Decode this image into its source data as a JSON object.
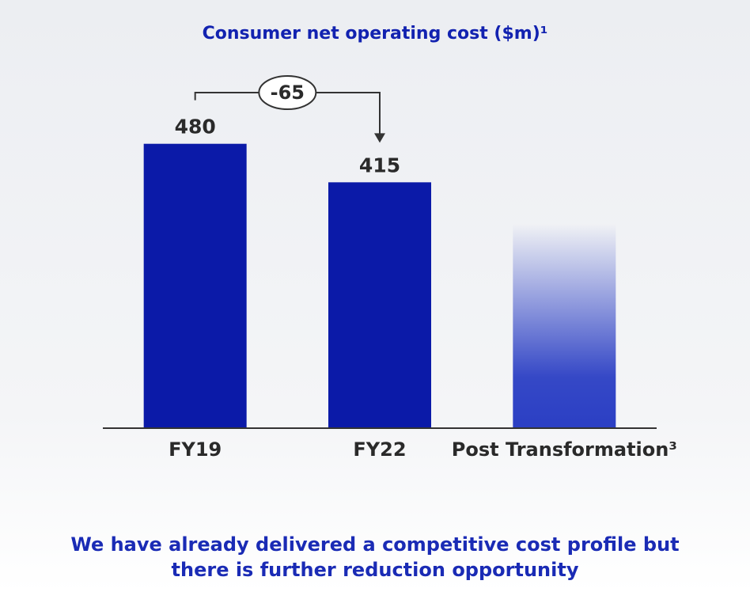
{
  "chart_data": {
    "type": "bar",
    "title": "Consumer net operating cost ($m)¹",
    "categories": [
      "FY19",
      "FY22",
      "Post Transformation³"
    ],
    "values": [
      480,
      415,
      345
    ],
    "value_labels": [
      "480",
      "415",
      null
    ],
    "color": "#0b1aa8",
    "ylim": [
      0,
      700
    ],
    "annotation": "-65",
    "subtitle": "We have already delivered a competitive cost profile but there is further reduction opportunity"
  }
}
